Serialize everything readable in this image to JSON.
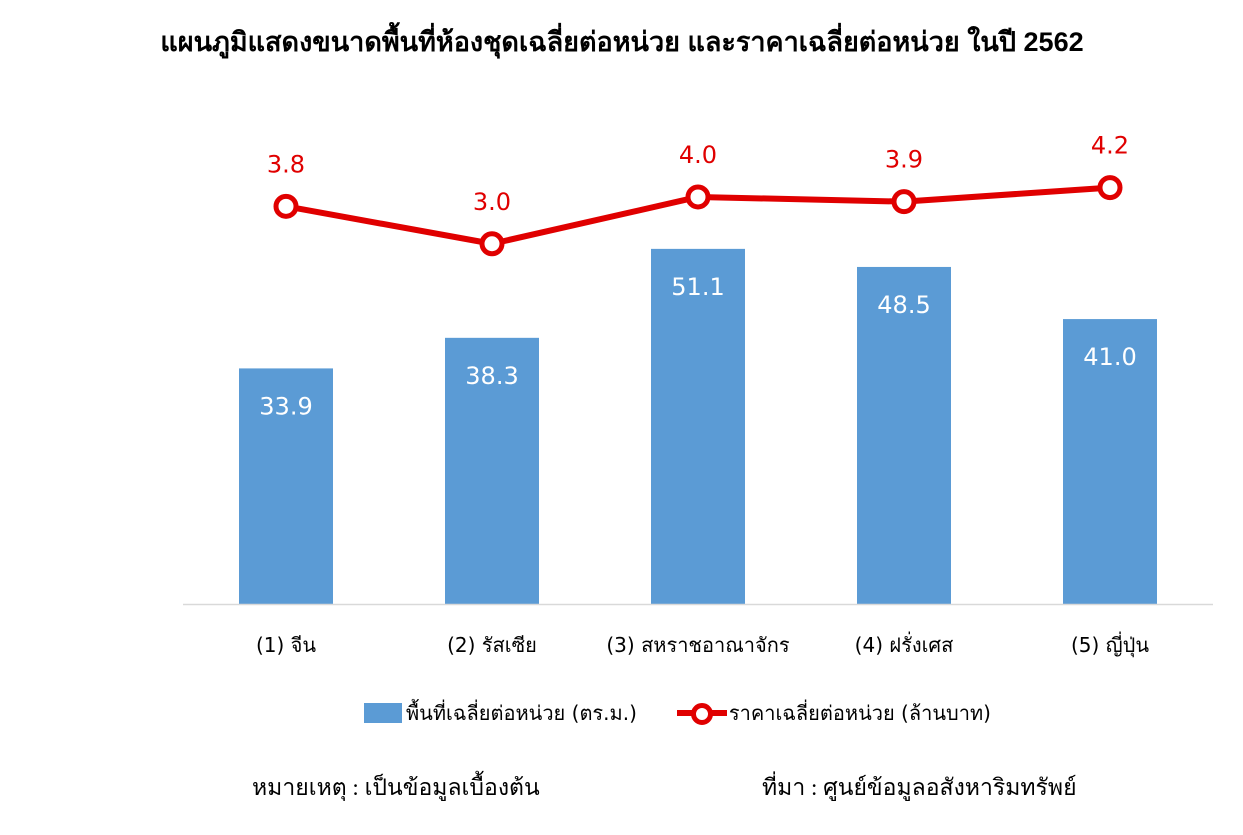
{
  "chart_data": {
    "type": "bar+line",
    "title": "แผนภูมิแสดงขนาดพื้นที่ห้องชุดเฉลี่ยต่อหน่วย และราคาเฉลี่ยต่อหน่วย ในปี 2562",
    "categories": [
      "(1) จีน",
      "(2) รัสเซีย",
      "(3) สหราชอาณาจักร",
      "(4) ฝรั่งเศส",
      "(5) ญี่ปุ่น"
    ],
    "series": [
      {
        "name": "พื้นที่เฉลี่ยต่อหน่วย (ตร.ม.)",
        "type": "bar",
        "color": "#5b9bd5",
        "values": [
          33.9,
          38.3,
          51.1,
          48.5,
          41.0
        ],
        "labels": [
          "33.9",
          "38.3",
          "51.1",
          "48.5",
          "41.0"
        ]
      },
      {
        "name": "ราคาเฉลี่ยต่อหน่วย (ล้านบาท)",
        "type": "line",
        "color": "#e00000",
        "values": [
          3.8,
          3.0,
          4.0,
          3.9,
          4.2
        ],
        "labels": [
          "3.8",
          "3.0",
          "4.0",
          "3.9",
          "4.2"
        ]
      }
    ],
    "ylim": [
      0,
      75.4
    ],
    "y2lim": [
      -4.7,
      6.5
    ],
    "grid": false,
    "legend": "bottom"
  },
  "notes": {
    "remark": "หมายเหตุ : เป็นข้อมูลเบื้องต้น",
    "source": "ที่มา : ศูนย์ข้อมูลอสังหาริมทรัพย์"
  }
}
